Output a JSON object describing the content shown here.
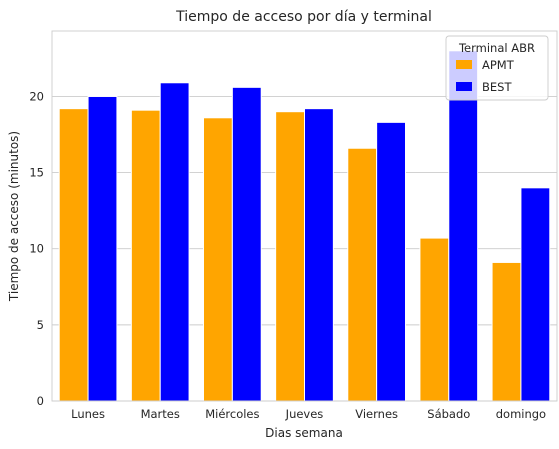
{
  "chart_data": {
    "type": "bar",
    "title": "Tiempo de acceso por día y terminal",
    "xlabel": "Dias semana",
    "ylabel": "Tiempo de acceso (minutos)",
    "categories": [
      "Lunes",
      "Martes",
      "Miércoles",
      "Jueves",
      "Viernes",
      "Sábado",
      "domingo"
    ],
    "series": [
      {
        "name": "APMT",
        "color": "#ffa500",
        "values": [
          19.2,
          19.1,
          18.6,
          19.0,
          16.6,
          10.7,
          9.1
        ]
      },
      {
        "name": "BEST",
        "color": "#0000ff",
        "values": [
          20.0,
          20.9,
          20.6,
          19.2,
          18.3,
          23.0,
          14.0
        ]
      }
    ],
    "ylim": [
      0,
      24.3
    ],
    "yticks": [
      0,
      5,
      10,
      15,
      20
    ],
    "ytick_labels": [
      "0",
      "5",
      "10",
      "15",
      "20"
    ],
    "legend": {
      "title": "Terminal ABR",
      "position": "top-right"
    },
    "grid": "y"
  }
}
